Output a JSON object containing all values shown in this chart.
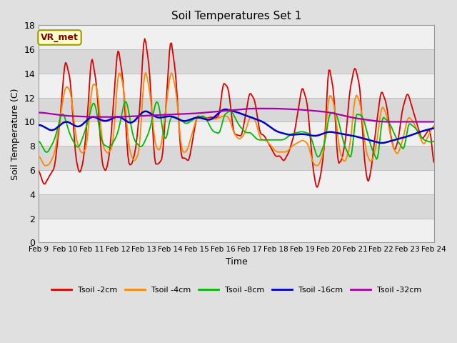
{
  "title": "Soil Temperatures Set 1",
  "xlabel": "Time",
  "ylabel": "Soil Temperature (C)",
  "ylim": [
    0,
    18
  ],
  "yticks": [
    0,
    2,
    4,
    6,
    8,
    10,
    12,
    14,
    16,
    18
  ],
  "x_labels": [
    "Feb 9",
    "Feb 10",
    "Feb 11",
    "Feb 12",
    "Feb 13",
    "Feb 14",
    "Feb 15",
    "Feb 16",
    "Feb 17",
    "Feb 18",
    "Feb 19",
    "Feb 20",
    "Feb 21",
    "Feb 22",
    "Feb 23",
    "Feb 24"
  ],
  "annotation_text": "VR_met",
  "colors": {
    "tsoil_2cm": "#dd0000",
    "tsoil_4cm": "#ff8800",
    "tsoil_8cm": "#00bb00",
    "tsoil_16cm": "#0000cc",
    "tsoil_32cm": "#aa00aa"
  },
  "legend_labels": [
    "Tsoil -2cm",
    "Tsoil -4cm",
    "Tsoil -8cm",
    "Tsoil -16cm",
    "Tsoil -32cm"
  ],
  "bg_outer": "#e0e0e0",
  "band_light": "#f0f0f0",
  "band_dark": "#d8d8d8"
}
